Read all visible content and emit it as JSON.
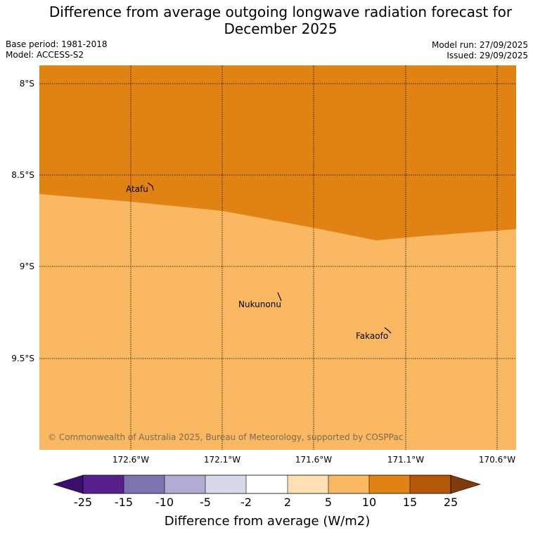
{
  "title_line1": "Difference from average outgoing longwave radiation forecast for",
  "title_line2": "December 2025",
  "base_period": "Base period: 1981-2018",
  "model": "Model: ACCESS-S2",
  "model_run": "Model run: 27/09/2025",
  "issued": "Issued: 29/09/2025",
  "lat_labels": [
    "8°S",
    "8.5°S",
    "9°S",
    "9.5°S"
  ],
  "lon_labels": [
    "172.6°W",
    "172.1°W",
    "171.6°W",
    "171.1°W",
    "170.6°W"
  ],
  "places": [
    "Atafu",
    "Nukunonu",
    "Fakaofo"
  ],
  "copyright": "© Commonwealth of Australia 2025, Bureau of Meteorology, supported by COSPPac",
  "colorbar": {
    "ticks": [
      "-25",
      "-15",
      "-10",
      "-5",
      "-2",
      "2",
      "5",
      "10",
      "15",
      "25"
    ],
    "colors": [
      "#3b0f6e",
      "#56218c",
      "#7f72b0",
      "#b2abd2",
      "#d8d8eb",
      "#ffffff",
      "#fedfb4",
      "#fbb862",
      "#e08214",
      "#b35806",
      "#7f3b08"
    ],
    "label": "Difference from average (W/m2)"
  },
  "map_colors": {
    "north_region": "#e08214",
    "south_region": "#fbb862"
  }
}
